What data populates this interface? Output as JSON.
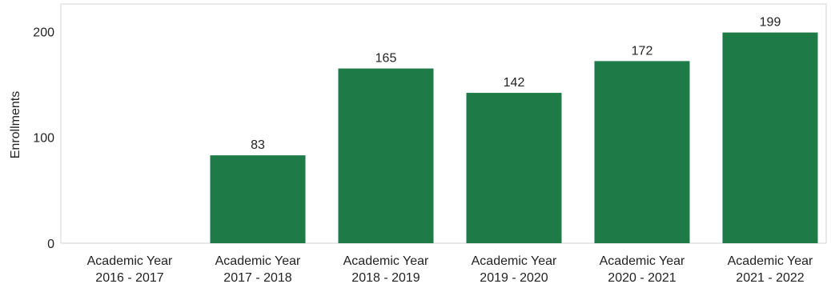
{
  "chart_data": {
    "type": "bar",
    "title": "",
    "xlabel": "",
    "ylabel": "Enrollments",
    "ylim": [
      0,
      210
    ],
    "yticks": [
      0,
      100,
      200
    ],
    "grid": false,
    "bar_color": "#1e7b48",
    "categories": [
      [
        "Academic Year",
        "2016 - 2017"
      ],
      [
        "Academic Year",
        "2017 - 2018"
      ],
      [
        "Academic Year",
        "2018 - 2019"
      ],
      [
        "Academic Year",
        "2019 - 2020"
      ],
      [
        "Academic Year",
        "2020 - 2021"
      ],
      [
        "Academic Year",
        "2021 - 2022"
      ]
    ],
    "values": [
      null,
      83,
      165,
      142,
      172,
      199
    ],
    "data_labels": [
      "",
      "83",
      "165",
      "142",
      "172",
      "199"
    ]
  }
}
